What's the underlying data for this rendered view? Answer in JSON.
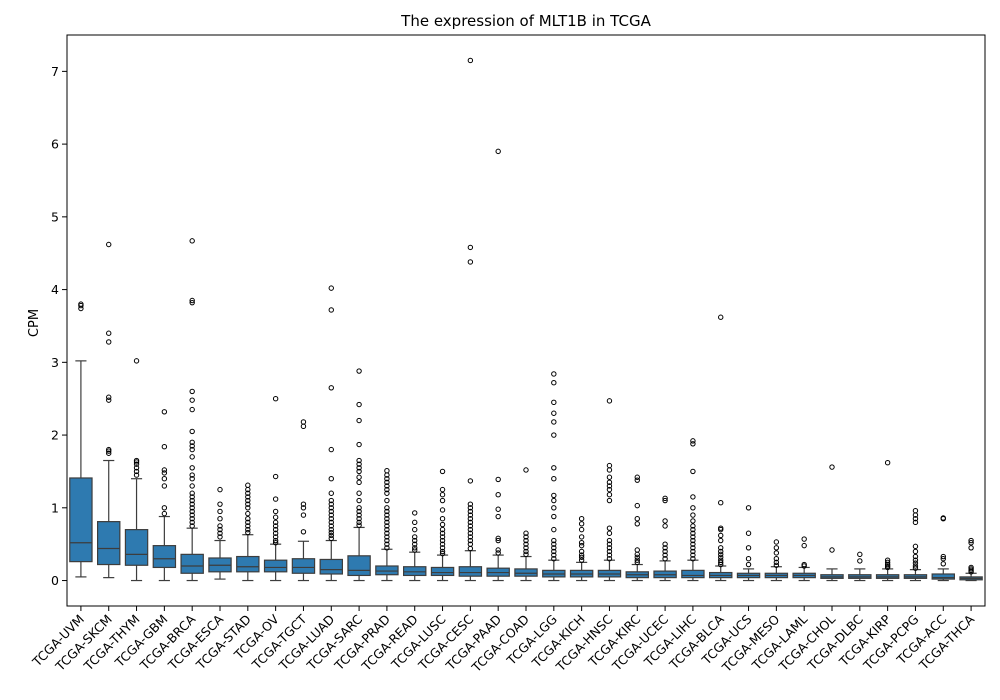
{
  "chart_data": {
    "type": "boxplot",
    "title": "The expression of MLT1B in TCGA",
    "xlabel": "",
    "ylabel": "CPM",
    "ylim": [
      -0.35,
      7.5
    ],
    "yticks": [
      0,
      1,
      2,
      3,
      4,
      5,
      6,
      7
    ],
    "box_color": "#2e7ab0",
    "line_color": "#3d3d3d",
    "categories": [
      "TCGA-UVM",
      "TCGA-SKCM",
      "TCGA-THYM",
      "TCGA-GBM",
      "TCGA-BRCA",
      "TCGA-ESCA",
      "TCGA-STAD",
      "TCGA-OV",
      "TCGA-TGCT",
      "TCGA-LUAD",
      "TCGA-SARC",
      "TCGA-PRAD",
      "TCGA-READ",
      "TCGA-LUSC",
      "TCGA-CESC",
      "TCGA-PAAD",
      "TCGA-COAD",
      "TCGA-LGG",
      "TCGA-KICH",
      "TCGA-HNSC",
      "TCGA-KIRC",
      "TCGA-UCEC",
      "TCGA-LIHC",
      "TCGA-BLCA",
      "TCGA-UCS",
      "TCGA-MESO",
      "TCGA-LAML",
      "TCGA-CHOL",
      "TCGA-DLBC",
      "TCGA-KIRP",
      "TCGA-PCPG",
      "TCGA-ACC",
      "TCGA-THCA"
    ],
    "boxes": [
      {
        "whislo": 0.05,
        "q1": 0.26,
        "med": 0.52,
        "q3": 1.41,
        "whishi": 3.02,
        "fliers": [
          3.74,
          3.78,
          3.8
        ]
      },
      {
        "whislo": 0.04,
        "q1": 0.22,
        "med": 0.44,
        "q3": 0.81,
        "whishi": 1.65,
        "fliers": [
          1.75,
          1.78,
          1.8,
          2.48,
          2.52,
          3.28,
          3.4,
          4.62
        ]
      },
      {
        "whislo": 0.0,
        "q1": 0.21,
        "med": 0.36,
        "q3": 0.7,
        "whishi": 1.4,
        "fliers": [
          1.45,
          1.5,
          1.55,
          1.6,
          1.63,
          1.65,
          3.02
        ]
      },
      {
        "whislo": 0.0,
        "q1": 0.18,
        "med": 0.3,
        "q3": 0.48,
        "whishi": 0.88,
        "fliers": [
          0.92,
          1.0,
          1.3,
          1.4,
          1.48,
          1.52,
          1.84,
          2.32
        ]
      },
      {
        "whislo": 0.0,
        "q1": 0.1,
        "med": 0.2,
        "q3": 0.36,
        "whishi": 0.72,
        "fliers": [
          0.75,
          0.8,
          0.85,
          0.9,
          0.95,
          1.0,
          1.05,
          1.1,
          1.15,
          1.2,
          1.3,
          1.4,
          1.45,
          1.55,
          1.7,
          1.8,
          1.85,
          1.9,
          2.05,
          2.35,
          2.48,
          2.6,
          3.82,
          3.85,
          4.67
        ]
      },
      {
        "whislo": 0.02,
        "q1": 0.12,
        "med": 0.21,
        "q3": 0.31,
        "whishi": 0.55,
        "fliers": [
          0.6,
          0.65,
          0.7,
          0.75,
          0.85,
          0.95,
          1.05,
          1.25
        ]
      },
      {
        "whislo": 0.0,
        "q1": 0.12,
        "med": 0.19,
        "q3": 0.33,
        "whishi": 0.63,
        "fliers": [
          0.66,
          0.7,
          0.75,
          0.8,
          0.85,
          0.92,
          1.0,
          1.05,
          1.1,
          1.15,
          1.2,
          1.25,
          1.31
        ]
      },
      {
        "whislo": 0.0,
        "q1": 0.12,
        "med": 0.18,
        "q3": 0.28,
        "whishi": 0.5,
        "fliers": [
          0.52,
          0.55,
          0.6,
          0.65,
          0.7,
          0.75,
          0.8,
          0.87,
          0.95,
          1.12,
          1.43,
          2.5
        ]
      },
      {
        "whislo": 0.0,
        "q1": 0.1,
        "med": 0.18,
        "q3": 0.3,
        "whishi": 0.54,
        "fliers": [
          0.67,
          0.9,
          1.0,
          1.05,
          2.12,
          2.18
        ]
      },
      {
        "whislo": 0.0,
        "q1": 0.09,
        "med": 0.15,
        "q3": 0.29,
        "whishi": 0.55,
        "fliers": [
          0.58,
          0.62,
          0.66,
          0.7,
          0.75,
          0.8,
          0.85,
          0.9,
          0.95,
          1.0,
          1.05,
          1.1,
          1.2,
          1.4,
          1.8,
          2.65,
          3.72,
          4.02
        ]
      },
      {
        "whislo": 0.0,
        "q1": 0.07,
        "med": 0.14,
        "q3": 0.34,
        "whishi": 0.73,
        "fliers": [
          0.76,
          0.8,
          0.85,
          0.9,
          0.95,
          1.0,
          1.1,
          1.2,
          1.35,
          1.42,
          1.5,
          1.55,
          1.6,
          1.65,
          1.87,
          2.2,
          2.42,
          2.88
        ]
      },
      {
        "whislo": 0.0,
        "q1": 0.08,
        "med": 0.13,
        "q3": 0.2,
        "whishi": 0.43,
        "fliers": [
          0.45,
          0.5,
          0.55,
          0.6,
          0.65,
          0.7,
          0.75,
          0.8,
          0.85,
          0.9,
          0.95,
          1.0,
          1.1,
          1.2,
          1.25,
          1.3,
          1.35,
          1.4,
          1.45,
          1.51
        ]
      },
      {
        "whislo": 0.0,
        "q1": 0.07,
        "med": 0.12,
        "q3": 0.19,
        "whishi": 0.39,
        "fliers": [
          0.42,
          0.45,
          0.5,
          0.55,
          0.6,
          0.7,
          0.8,
          0.93
        ]
      },
      {
        "whislo": 0.0,
        "q1": 0.07,
        "med": 0.11,
        "q3": 0.18,
        "whishi": 0.35,
        "fliers": [
          0.37,
          0.4,
          0.45,
          0.5,
          0.55,
          0.6,
          0.65,
          0.7,
          0.77,
          0.85,
          0.97,
          1.1,
          1.18,
          1.25,
          1.5
        ]
      },
      {
        "whislo": 0.0,
        "q1": 0.06,
        "med": 0.11,
        "q3": 0.19,
        "whishi": 0.41,
        "fliers": [
          0.44,
          0.5,
          0.55,
          0.6,
          0.65,
          0.7,
          0.75,
          0.8,
          0.85,
          0.9,
          0.95,
          1.0,
          1.05,
          1.37,
          4.38,
          4.58,
          7.15
        ]
      },
      {
        "whislo": 0.0,
        "q1": 0.06,
        "med": 0.11,
        "q3": 0.17,
        "whishi": 0.35,
        "fliers": [
          0.38,
          0.42,
          0.55,
          0.58,
          0.88,
          0.98,
          1.18,
          1.39,
          5.9
        ]
      },
      {
        "whislo": 0.0,
        "q1": 0.06,
        "med": 0.1,
        "q3": 0.16,
        "whishi": 0.33,
        "fliers": [
          0.36,
          0.4,
          0.45,
          0.5,
          0.55,
          0.6,
          0.65,
          1.52
        ]
      },
      {
        "whislo": 0.0,
        "q1": 0.05,
        "med": 0.09,
        "q3": 0.14,
        "whishi": 0.28,
        "fliers": [
          0.3,
          0.35,
          0.4,
          0.45,
          0.5,
          0.55,
          0.7,
          0.88,
          1.0,
          1.1,
          1.17,
          1.4,
          1.55,
          2.0,
          2.18,
          2.3,
          2.45,
          2.72,
          2.84
        ]
      },
      {
        "whislo": 0.0,
        "q1": 0.05,
        "med": 0.09,
        "q3": 0.14,
        "whishi": 0.25,
        "fliers": [
          0.28,
          0.32,
          0.35,
          0.4,
          0.48,
          0.52,
          0.6,
          0.7,
          0.78,
          0.85
        ]
      },
      {
        "whislo": 0.0,
        "q1": 0.05,
        "med": 0.09,
        "q3": 0.14,
        "whishi": 0.28,
        "fliers": [
          0.3,
          0.35,
          0.4,
          0.45,
          0.5,
          0.55,
          0.65,
          0.72,
          1.1,
          1.18,
          1.25,
          1.3,
          1.35,
          1.42,
          1.52,
          1.58,
          2.47
        ]
      },
      {
        "whislo": 0.0,
        "q1": 0.04,
        "med": 0.08,
        "q3": 0.12,
        "whishi": 0.22,
        "fliers": [
          0.25,
          0.28,
          0.32,
          0.36,
          0.42,
          0.78,
          0.85,
          1.03,
          1.38,
          1.42
        ]
      },
      {
        "whislo": 0.0,
        "q1": 0.04,
        "med": 0.08,
        "q3": 0.13,
        "whishi": 0.27,
        "fliers": [
          0.3,
          0.35,
          0.4,
          0.45,
          0.5,
          0.75,
          0.82,
          1.1,
          1.13
        ]
      },
      {
        "whislo": 0.0,
        "q1": 0.04,
        "med": 0.07,
        "q3": 0.14,
        "whishi": 0.28,
        "fliers": [
          0.3,
          0.35,
          0.4,
          0.45,
          0.5,
          0.55,
          0.6,
          0.65,
          0.7,
          0.75,
          0.82,
          0.9,
          1.0,
          1.15,
          1.5,
          1.88,
          1.92
        ]
      },
      {
        "whislo": 0.0,
        "q1": 0.04,
        "med": 0.07,
        "q3": 0.11,
        "whishi": 0.2,
        "fliers": [
          0.22,
          0.25,
          0.28,
          0.32,
          0.36,
          0.4,
          0.45,
          0.55,
          0.62,
          0.7,
          0.72,
          1.07,
          3.62
        ]
      },
      {
        "whislo": 0.0,
        "q1": 0.04,
        "med": 0.07,
        "q3": 0.1,
        "whishi": 0.16,
        "fliers": [
          0.22,
          0.3,
          0.45,
          0.65,
          1.0
        ]
      },
      {
        "whislo": 0.0,
        "q1": 0.04,
        "med": 0.07,
        "q3": 0.1,
        "whishi": 0.19,
        "fliers": [
          0.21,
          0.25,
          0.3,
          0.38,
          0.45,
          0.53
        ]
      },
      {
        "whislo": 0.0,
        "q1": 0.04,
        "med": 0.07,
        "q3": 0.1,
        "whishi": 0.18,
        "fliers": [
          0.2,
          0.22,
          0.48,
          0.57
        ]
      },
      {
        "whislo": 0.0,
        "q1": 0.03,
        "med": 0.05,
        "q3": 0.08,
        "whishi": 0.16,
        "fliers": [
          0.42,
          1.56
        ]
      },
      {
        "whislo": 0.0,
        "q1": 0.03,
        "med": 0.05,
        "q3": 0.08,
        "whishi": 0.16,
        "fliers": [
          0.27,
          0.36
        ]
      },
      {
        "whislo": 0.0,
        "q1": 0.03,
        "med": 0.05,
        "q3": 0.08,
        "whishi": 0.16,
        "fliers": [
          0.18,
          0.2,
          0.22,
          0.25,
          0.28,
          1.62
        ]
      },
      {
        "whislo": 0.0,
        "q1": 0.03,
        "med": 0.05,
        "q3": 0.08,
        "whishi": 0.15,
        "fliers": [
          0.17,
          0.2,
          0.24,
          0.28,
          0.33,
          0.4,
          0.47,
          0.8,
          0.85,
          0.9,
          0.96
        ]
      },
      {
        "whislo": 0.0,
        "q1": 0.02,
        "med": 0.04,
        "q3": 0.09,
        "whishi": 0.16,
        "fliers": [
          0.23,
          0.3,
          0.33,
          0.85,
          0.86
        ]
      },
      {
        "whislo": 0.0,
        "q1": 0.01,
        "med": 0.03,
        "q3": 0.05,
        "whishi": 0.1,
        "fliers": [
          0.12,
          0.14,
          0.16,
          0.18,
          0.45,
          0.52,
          0.55
        ]
      }
    ]
  }
}
